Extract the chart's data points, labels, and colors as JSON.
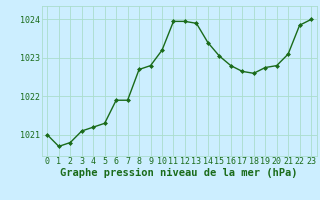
{
  "x": [
    0,
    1,
    2,
    3,
    4,
    5,
    6,
    7,
    8,
    9,
    10,
    11,
    12,
    13,
    14,
    15,
    16,
    17,
    18,
    19,
    20,
    21,
    22,
    23
  ],
  "y": [
    1021.0,
    1020.7,
    1020.8,
    1021.1,
    1021.2,
    1021.3,
    1021.9,
    1021.9,
    1022.7,
    1022.8,
    1023.2,
    1023.95,
    1023.95,
    1023.9,
    1023.4,
    1023.05,
    1022.8,
    1022.65,
    1022.6,
    1022.75,
    1022.8,
    1023.1,
    1023.85,
    1024.0
  ],
  "line_color": "#1a6b1a",
  "marker": "D",
  "marker_size": 2.0,
  "background_color": "#cceeff",
  "grid_color": "#aaddcc",
  "text_color": "#1a6b1a",
  "title": "Graphe pression niveau de la mer (hPa)",
  "ylim_min": 1020.45,
  "ylim_max": 1024.35,
  "yticks": [
    1021,
    1022,
    1023,
    1024
  ],
  "xticks": [
    0,
    1,
    2,
    3,
    4,
    5,
    6,
    7,
    8,
    9,
    10,
    11,
    12,
    13,
    14,
    15,
    16,
    17,
    18,
    19,
    20,
    21,
    22,
    23
  ],
  "title_fontsize": 7.5,
  "tick_fontsize": 6.0,
  "line_width": 1.0
}
